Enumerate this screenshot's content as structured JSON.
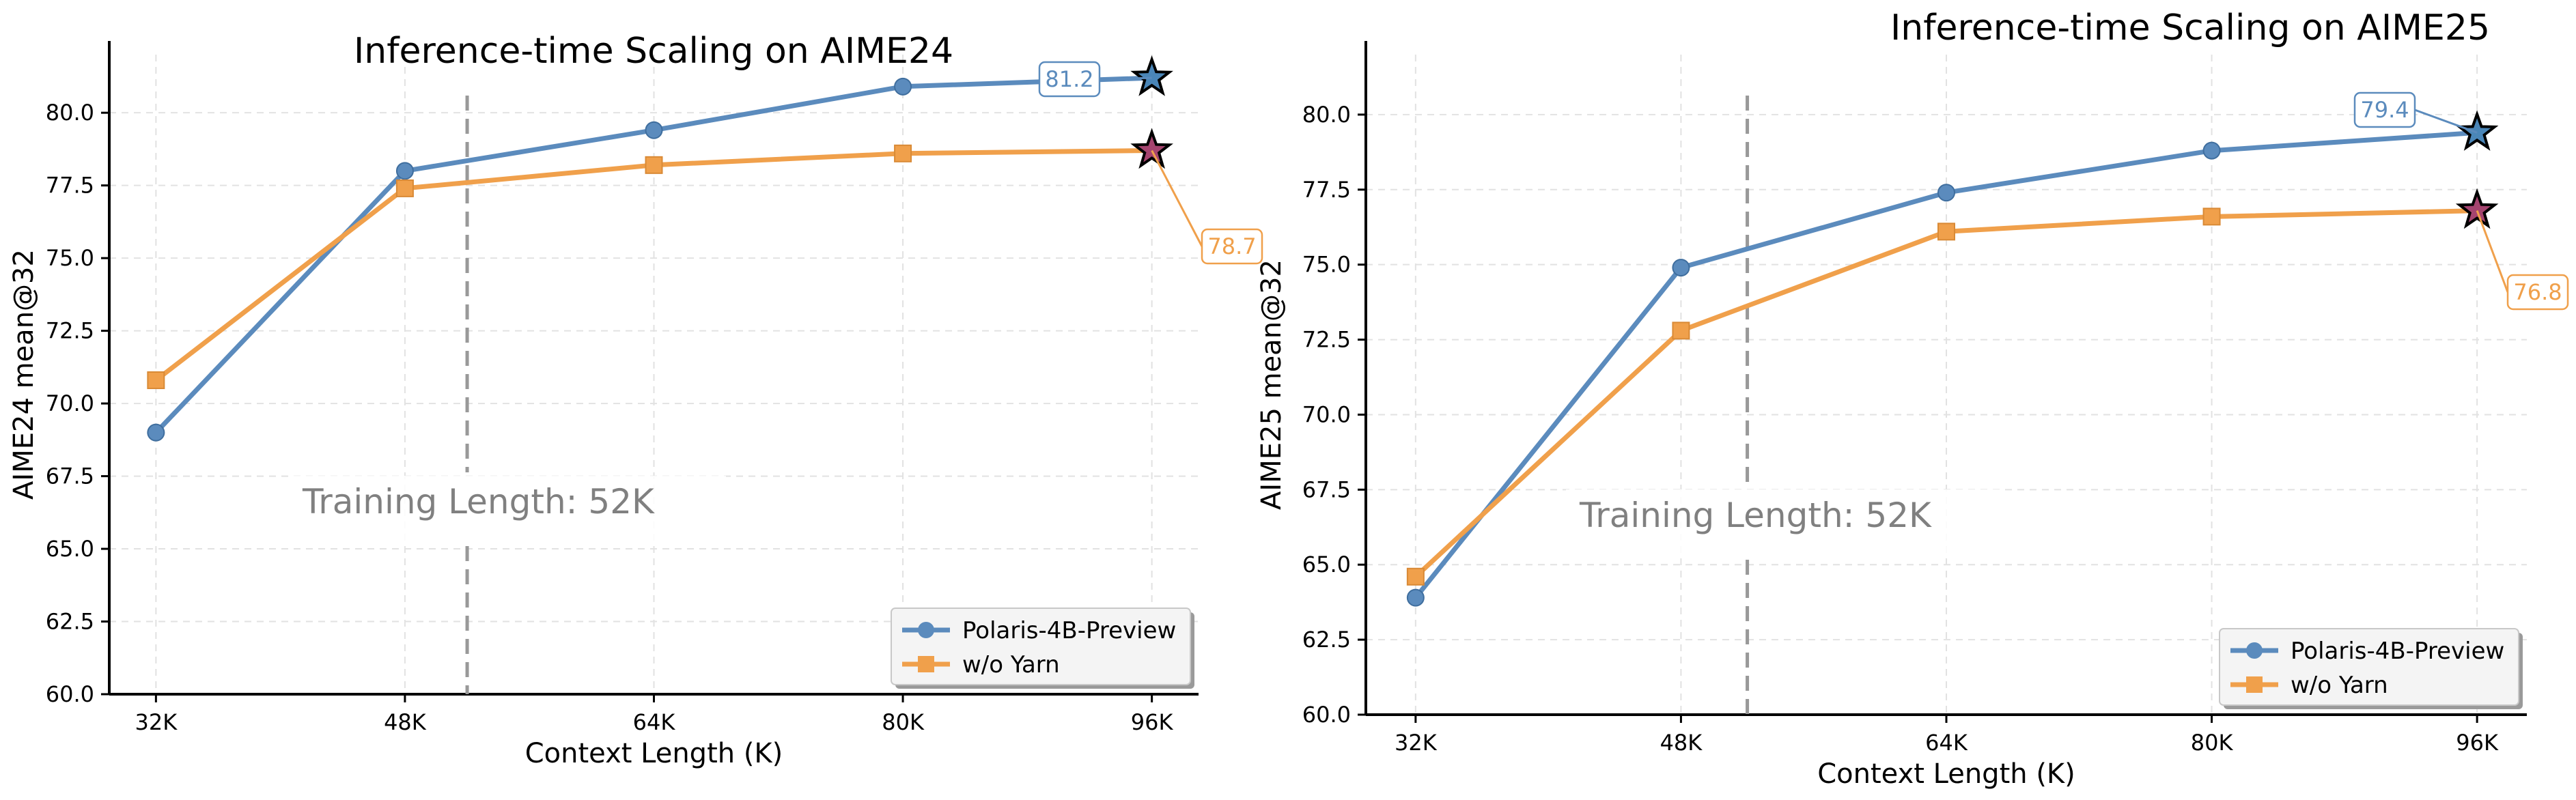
{
  "colors": {
    "polaris": "#5b8bbd",
    "yarn": "#f0a04b",
    "polaris_star": "#4a86b8",
    "yarn_star": "#a5446f",
    "threshold": "#999999",
    "grid": "#e2e2e2"
  },
  "chart_data": [
    {
      "type": "line",
      "title": "Inference-time Scaling on AIME24",
      "xlabel": "Context Length (K)",
      "ylabel": "AIME24 mean@32",
      "categories": [
        "32K",
        "48K",
        "64K",
        "80K",
        "96K"
      ],
      "x": [
        32,
        48,
        64,
        80,
        96
      ],
      "xlim": [
        29,
        99
      ],
      "ylim": [
        60.0,
        82.0
      ],
      "yticks": [
        "60.0",
        "62.5",
        "65.0",
        "67.5",
        "70.0",
        "72.5",
        "75.0",
        "77.5",
        "80.0"
      ],
      "grid": true,
      "legend_position": "bottom-right",
      "threshold": {
        "x": 52,
        "label": "Training Length: 52K"
      },
      "series": [
        {
          "name": "Polaris-4B-Preview",
          "marker": "circle",
          "values": [
            69.0,
            78.0,
            79.4,
            80.9,
            81.2
          ]
        },
        {
          "name": "w/o Yarn",
          "marker": "square",
          "values": [
            70.8,
            77.4,
            78.2,
            78.6,
            78.7
          ]
        }
      ],
      "annotations": [
        {
          "text": "81.2",
          "series": "Polaris-4B-Preview",
          "x": 96,
          "y": 81.2
        },
        {
          "text": "78.7",
          "series": "w/o Yarn",
          "x": 96,
          "y": 78.7
        }
      ]
    },
    {
      "type": "line",
      "title": "Inference-time Scaling on AIME25",
      "xlabel": "Context Length (K)",
      "ylabel": "AIME25 mean@32",
      "categories": [
        "32K",
        "48K",
        "64K",
        "80K",
        "96K"
      ],
      "x": [
        32,
        48,
        64,
        80,
        96
      ],
      "xlim": [
        29,
        99
      ],
      "ylim": [
        60.0,
        82.0
      ],
      "yticks": [
        "60.0",
        "62.5",
        "65.0",
        "67.5",
        "70.0",
        "72.5",
        "75.0",
        "77.5",
        "80.0"
      ],
      "grid": true,
      "legend_position": "bottom-right",
      "threshold": {
        "x": 52,
        "label": "Training Length: 52K"
      },
      "series": [
        {
          "name": "Polaris-4B-Preview",
          "marker": "circle",
          "values": [
            63.9,
            74.9,
            77.4,
            78.8,
            79.4
          ]
        },
        {
          "name": "w/o Yarn",
          "marker": "square",
          "values": [
            64.6,
            72.8,
            76.1,
            76.6,
            76.8
          ]
        }
      ],
      "annotations": [
        {
          "text": "79.4",
          "series": "Polaris-4B-Preview",
          "x": 96,
          "y": 79.4
        },
        {
          "text": "76.8",
          "series": "w/o Yarn",
          "x": 96,
          "y": 76.8
        }
      ]
    }
  ]
}
